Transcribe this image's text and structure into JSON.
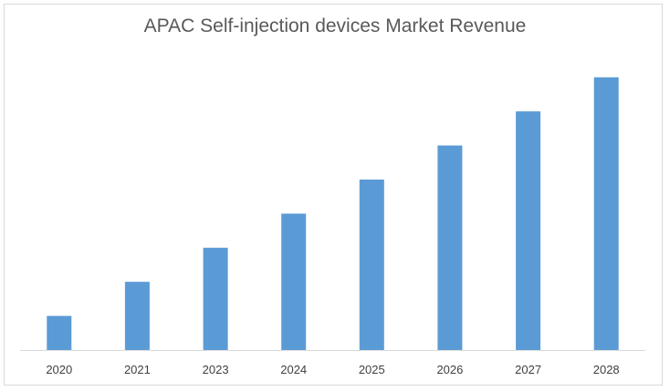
{
  "chart_data": {
    "type": "bar",
    "title": "APAC Self-injection devices Market Revenue",
    "xlabel": "",
    "ylabel": "",
    "categories": [
      "2020",
      "2021",
      "2023",
      "2024",
      "2025",
      "2026",
      "2027",
      "2028"
    ],
    "values": [
      1.0,
      2.0,
      3.0,
      4.0,
      5.0,
      6.0,
      7.0,
      8.0
    ],
    "ylim": [
      0,
      10
    ],
    "grid": false,
    "bar_color": "#5b9bd5",
    "axis_color": "#d9d9d9"
  }
}
